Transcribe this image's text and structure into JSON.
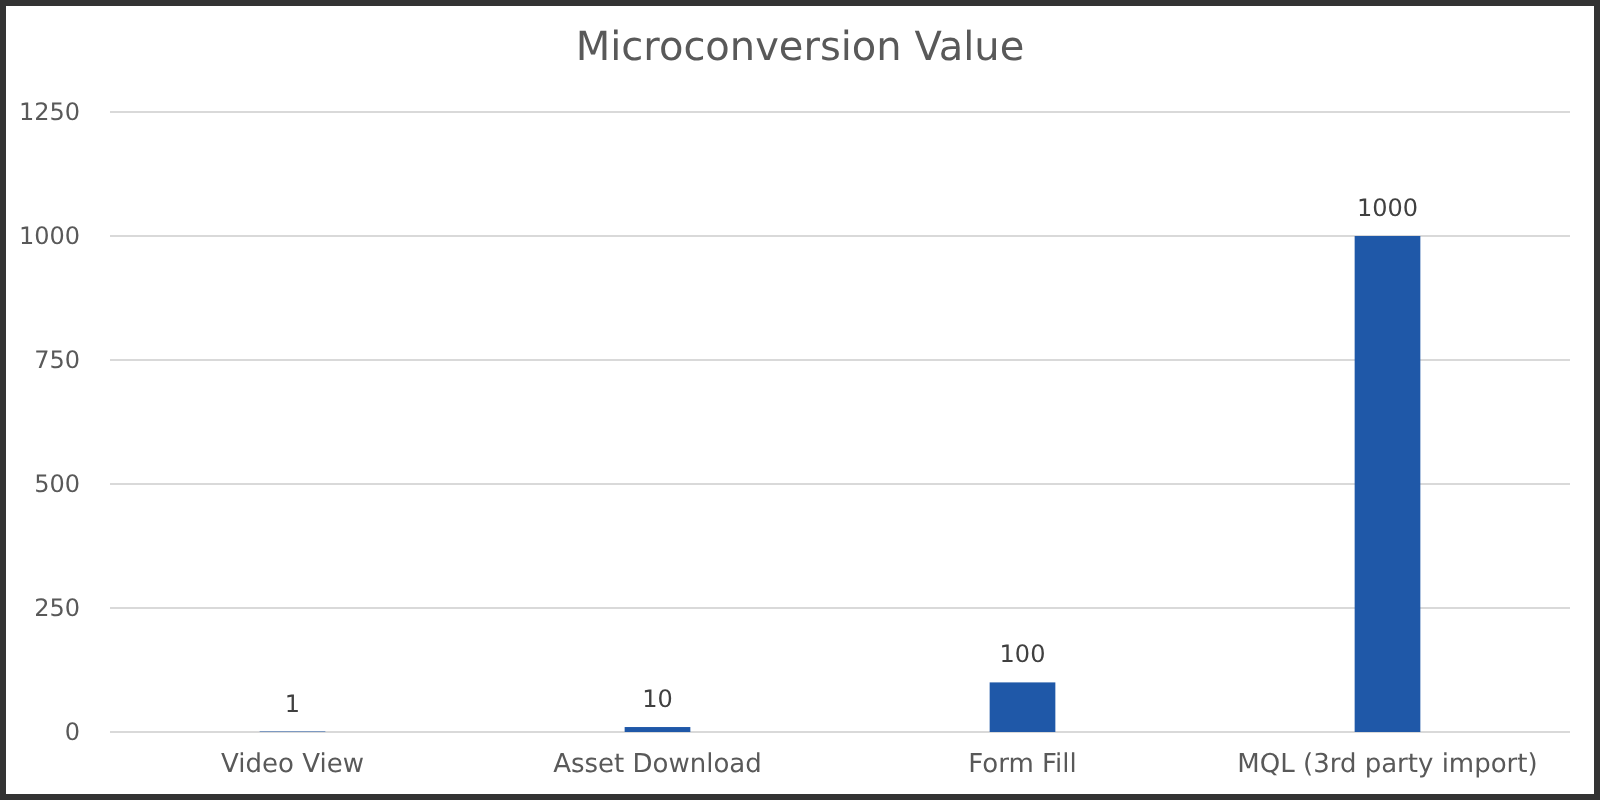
{
  "chart_data": {
    "type": "bar",
    "title": "Microconversion Value",
    "categories": [
      "Video View",
      "Asset Download",
      "Form Fill",
      "MQL (3rd party import)"
    ],
    "values": [
      1,
      10,
      100,
      1000
    ],
    "color": "#1f58a8",
    "ylim": [
      0,
      1250
    ],
    "yticks": [
      0,
      250,
      500,
      750,
      1000,
      1250
    ],
    "grid": "y",
    "data_labels": true
  }
}
